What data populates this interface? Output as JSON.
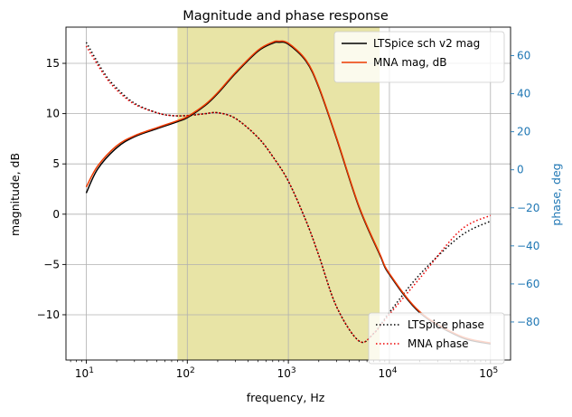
{
  "chart_data": {
    "type": "line",
    "title": "Magnitude and phase response",
    "xlabel": "frequency, Hz",
    "ylabel": "magnitude, dB",
    "ylabel_right": "phase, deg",
    "x_scale": "log",
    "xlim": [
      6.3,
      158000
    ],
    "ylim": [
      -14.5,
      18.6
    ],
    "ylim_right": [
      -100,
      75
    ],
    "grid": true,
    "highlight_band": {
      "x_from": 80,
      "x_to": 8000,
      "color": "#e8e4a6"
    },
    "x_ticks": [
      {
        "value": 10,
        "base": "10",
        "exp": "1"
      },
      {
        "value": 100,
        "base": "10",
        "exp": "2"
      },
      {
        "value": 1000,
        "base": "10",
        "exp": "3"
      },
      {
        "value": 10000,
        "base": "10",
        "exp": "4"
      },
      {
        "value": 100000,
        "base": "10",
        "exp": "5"
      }
    ],
    "y_ticks": [
      {
        "value": 15,
        "label": "15"
      },
      {
        "value": 10,
        "label": "10"
      },
      {
        "value": 5,
        "label": "5"
      },
      {
        "value": 0,
        "label": "0"
      },
      {
        "value": -5,
        "label": "−5"
      },
      {
        "value": -10,
        "label": "−10"
      }
    ],
    "y_ticks_right": [
      {
        "value": 60,
        "label": "60"
      },
      {
        "value": 40,
        "label": "40"
      },
      {
        "value": 20,
        "label": "20"
      },
      {
        "value": 0,
        "label": "0"
      },
      {
        "value": -20,
        "label": "−20"
      },
      {
        "value": -40,
        "label": "−40"
      },
      {
        "value": -60,
        "label": "−60"
      },
      {
        "value": -80,
        "label": "−80"
      }
    ],
    "legend_top": {
      "placement": "top-right"
    },
    "legend_bottom": {
      "placement": "bottom-right"
    },
    "series": [
      {
        "name": "LTSpice sch v2 mag",
        "axis": "left",
        "color": "#000000",
        "style": "solid",
        "width": 1.5,
        "x": [
          10,
          13,
          20,
          30,
          50,
          80,
          100,
          150,
          200,
          300,
          500,
          700,
          800,
          1000,
          1500,
          2000,
          3000,
          5000,
          8000,
          10000,
          20000,
          50000,
          100000
        ],
        "y": [
          2.1,
          4.5,
          6.6,
          7.7,
          8.5,
          9.2,
          9.6,
          10.8,
          12.0,
          14.0,
          16.2,
          17.0,
          17.1,
          16.9,
          15.2,
          12.6,
          7.5,
          0.7,
          -4.0,
          -6.0,
          -9.8,
          -12.2,
          -12.9
        ]
      },
      {
        "name": "MNA mag, dB",
        "axis": "left",
        "color": "#ee3b00",
        "style": "solid",
        "width": 1.5,
        "x": [
          10,
          13,
          20,
          30,
          50,
          80,
          100,
          150,
          200,
          300,
          500,
          700,
          800,
          1000,
          1500,
          2000,
          3000,
          5000,
          8000,
          10000,
          20000,
          50000,
          100000
        ],
        "y": [
          2.7,
          4.8,
          6.8,
          7.8,
          8.6,
          9.3,
          9.7,
          10.9,
          12.1,
          14.1,
          16.3,
          17.1,
          17.2,
          17.0,
          15.3,
          12.7,
          7.6,
          0.8,
          -3.9,
          -5.9,
          -9.7,
          -12.1,
          -12.8
        ]
      },
      {
        "name": "LTSpice phase",
        "axis": "right",
        "color": "#000000",
        "style": "dotted",
        "width": 1.5,
        "x": [
          10,
          15,
          20,
          30,
          50,
          70,
          100,
          150,
          200,
          300,
          500,
          700,
          1000,
          1500,
          2000,
          3000,
          5000,
          7000,
          10000,
          20000,
          50000,
          100000
        ],
        "y": [
          67,
          51,
          43,
          35,
          30,
          28.5,
          28.5,
          29.5,
          30,
          27,
          17,
          7,
          -6,
          -27,
          -45,
          -72,
          -90,
          -86,
          -75,
          -55,
          -35,
          -27
        ]
      },
      {
        "name": "MNA phase",
        "axis": "right",
        "color": "#ee0000",
        "style": "dotted",
        "width": 1.5,
        "x": [
          10,
          15,
          20,
          30,
          50,
          70,
          100,
          150,
          200,
          300,
          500,
          700,
          1000,
          1500,
          2000,
          3000,
          5000,
          7000,
          10000,
          20000,
          50000,
          100000
        ],
        "y": [
          65,
          50,
          42,
          34.5,
          30,
          28.5,
          28.5,
          29.5,
          30,
          27,
          17,
          7,
          -6,
          -27,
          -45,
          -72,
          -90,
          -86,
          -76,
          -57,
          -32,
          -24
        ]
      }
    ]
  }
}
